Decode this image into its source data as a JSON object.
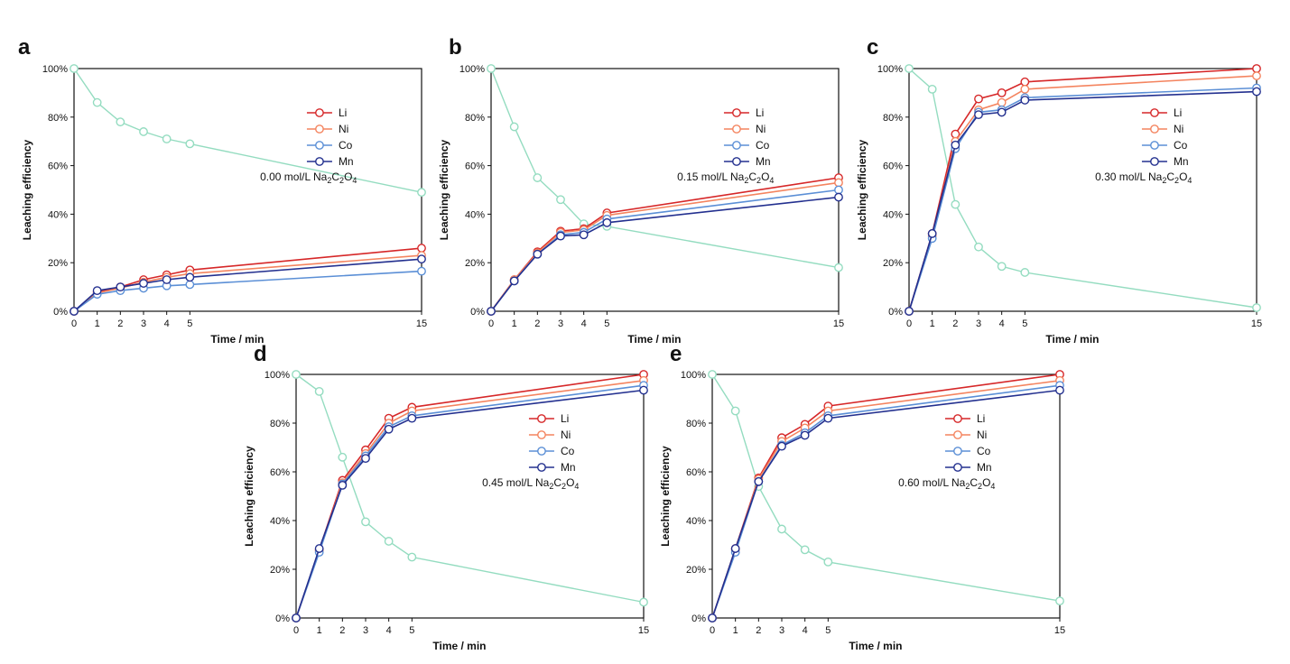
{
  "chart_data": [
    {
      "type": "line",
      "panel_label": "a",
      "xlabel": "Time / min",
      "ylabel": "Leaching efficiency",
      "x_ticks": [
        0,
        1,
        2,
        3,
        4,
        5,
        15
      ],
      "y_ticks": [
        "0%",
        "20%",
        "40%",
        "60%",
        "80%",
        "100%"
      ],
      "xlim": [
        0,
        15
      ],
      "ylim": [
        0,
        100
      ],
      "annotation": {
        "prefix": "0.00 mol/L Na",
        "sub1": "2",
        "mid": "C",
        "sub2": "2",
        "mid2": "O",
        "sub3": "4"
      },
      "legend_position": "right",
      "x": [
        0,
        1,
        2,
        3,
        4,
        5,
        15
      ],
      "series": [
        {
          "name": "Li",
          "color": "#d62728",
          "values": [
            0,
            8,
            10,
            13,
            15,
            17,
            26
          ]
        },
        {
          "name": "Ni",
          "color": "#f4845f",
          "values": [
            0,
            7.5,
            9.5,
            12,
            14,
            15.5,
            23
          ]
        },
        {
          "name": "Co",
          "color": "#5b8fd6",
          "values": [
            0,
            7,
            8.5,
            9.5,
            10.5,
            11,
            16.5
          ]
        },
        {
          "name": "Mn",
          "color": "#23308f",
          "values": [
            0,
            8.5,
            10,
            11.5,
            13,
            14,
            21.5
          ]
        },
        {
          "name": "",
          "color": "#94dcc0",
          "values": [
            100,
            86,
            78,
            74,
            71,
            69,
            49
          ]
        }
      ]
    },
    {
      "type": "line",
      "panel_label": "b",
      "xlabel": "Time / min",
      "ylabel": "Leaching efficiency",
      "x_ticks": [
        0,
        1,
        2,
        3,
        4,
        5,
        15
      ],
      "y_ticks": [
        "0%",
        "20%",
        "40%",
        "60%",
        "80%",
        "100%"
      ],
      "xlim": [
        0,
        15
      ],
      "ylim": [
        0,
        100
      ],
      "annotation": {
        "prefix": "0.15 mol/L Na",
        "sub1": "2",
        "mid": "C",
        "sub2": "2",
        "mid2": "O",
        "sub3": "4"
      },
      "legend_position": "right",
      "x": [
        0,
        1,
        2,
        3,
        4,
        5,
        15
      ],
      "series": [
        {
          "name": "Li",
          "color": "#d62728",
          "values": [
            0,
            13,
            24.5,
            33,
            34,
            40.5,
            55
          ]
        },
        {
          "name": "Ni",
          "color": "#f4845f",
          "values": [
            0,
            13,
            24,
            32.5,
            33.5,
            39.5,
            53
          ]
        },
        {
          "name": "Co",
          "color": "#5b8fd6",
          "values": [
            0,
            12.5,
            23.5,
            31.5,
            32.5,
            38,
            50
          ]
        },
        {
          "name": "Mn",
          "color": "#23308f",
          "values": [
            0,
            12.5,
            23.5,
            31,
            31.5,
            36.5,
            47
          ]
        },
        {
          "name": "",
          "color": "#94dcc0",
          "values": [
            100,
            76,
            55,
            46,
            36,
            35,
            18
          ]
        }
      ]
    },
    {
      "type": "line",
      "panel_label": "c",
      "xlabel": "Time / min",
      "ylabel": "Leaching efficiency",
      "x_ticks": [
        0,
        1,
        2,
        3,
        4,
        5,
        15
      ],
      "y_ticks": [
        "0%",
        "20%",
        "40%",
        "60%",
        "80%",
        "100%"
      ],
      "xlim": [
        0,
        15
      ],
      "ylim": [
        0,
        100
      ],
      "annotation": {
        "prefix": "0.30 mol/L Na",
        "sub1": "2",
        "mid": "C",
        "sub2": "2",
        "mid2": "O",
        "sub3": "4"
      },
      "legend_position": "right",
      "x": [
        0,
        1,
        2,
        3,
        4,
        5,
        15
      ],
      "series": [
        {
          "name": "Li",
          "color": "#d62728",
          "values": [
            0,
            32,
            73,
            87.5,
            90,
            94.5,
            100
          ]
        },
        {
          "name": "Ni",
          "color": "#f4845f",
          "values": [
            0,
            31,
            70,
            83,
            86,
            91.5,
            97
          ]
        },
        {
          "name": "Co",
          "color": "#5b8fd6",
          "values": [
            0,
            30,
            67,
            82,
            83,
            88,
            92
          ]
        },
        {
          "name": "Mn",
          "color": "#23308f",
          "values": [
            0,
            32,
            68.5,
            81,
            82,
            87,
            90.5
          ]
        },
        {
          "name": "",
          "color": "#94dcc0",
          "values": [
            100,
            91.5,
            44,
            26.5,
            18.5,
            16,
            1.5
          ]
        }
      ]
    },
    {
      "type": "line",
      "panel_label": "d",
      "xlabel": "Time / min",
      "ylabel": "Leaching efficiency",
      "x_ticks": [
        0,
        1,
        2,
        3,
        4,
        5,
        15
      ],
      "y_ticks": [
        "0%",
        "20%",
        "40%",
        "60%",
        "80%",
        "100%"
      ],
      "xlim": [
        0,
        15
      ],
      "ylim": [
        0,
        100
      ],
      "annotation": {
        "prefix": "0.45 mol/L Na",
        "sub1": "2",
        "mid": "C",
        "sub2": "2",
        "mid2": "O",
        "sub3": "4"
      },
      "legend_position": "right",
      "x": [
        0,
        1,
        2,
        3,
        4,
        5,
        15
      ],
      "series": [
        {
          "name": "Li",
          "color": "#d62728",
          "values": [
            0,
            28,
            56.5,
            69,
            82,
            86.5,
            100
          ]
        },
        {
          "name": "Ni",
          "color": "#f4845f",
          "values": [
            0,
            27.5,
            55.5,
            67.5,
            80,
            85,
            97.5
          ]
        },
        {
          "name": "Co",
          "color": "#5b8fd6",
          "values": [
            0,
            27,
            55,
            66.5,
            78.5,
            83,
            95.5
          ]
        },
        {
          "name": "Mn",
          "color": "#23308f",
          "values": [
            0,
            28.5,
            54.5,
            65.5,
            77.5,
            82,
            93.5
          ]
        },
        {
          "name": "",
          "color": "#94dcc0",
          "values": [
            100,
            93,
            66,
            39.5,
            31.5,
            25,
            6.5
          ]
        }
      ]
    },
    {
      "type": "line",
      "panel_label": "e",
      "xlabel": "Time / min",
      "ylabel": "Leaching efficiency",
      "x_ticks": [
        0,
        1,
        2,
        3,
        4,
        5,
        15
      ],
      "y_ticks": [
        "0%",
        "20%",
        "40%",
        "60%",
        "80%",
        "100%"
      ],
      "xlim": [
        0,
        15
      ],
      "ylim": [
        0,
        100
      ],
      "annotation": {
        "prefix": "0.60 mol/L Na",
        "sub1": "2",
        "mid": "C",
        "sub2": "2",
        "mid2": "O",
        "sub3": "4"
      },
      "legend_position": "right",
      "x": [
        0,
        1,
        2,
        3,
        4,
        5,
        15
      ],
      "series": [
        {
          "name": "Li",
          "color": "#d62728",
          "values": [
            0,
            28.5,
            57.5,
            74,
            79.5,
            87,
            100
          ]
        },
        {
          "name": "Ni",
          "color": "#f4845f",
          "values": [
            0,
            28,
            57,
            72.5,
            78,
            85,
            97.5
          ]
        },
        {
          "name": "Co",
          "color": "#5b8fd6",
          "values": [
            0,
            27,
            56,
            71,
            76,
            83,
            95.5
          ]
        },
        {
          "name": "Mn",
          "color": "#23308f",
          "values": [
            0,
            28.5,
            56,
            70.5,
            75,
            82,
            93.5
          ]
        },
        {
          "name": "",
          "color": "#94dcc0",
          "values": [
            100,
            85,
            54,
            36.5,
            28,
            23,
            7
          ]
        }
      ]
    }
  ]
}
